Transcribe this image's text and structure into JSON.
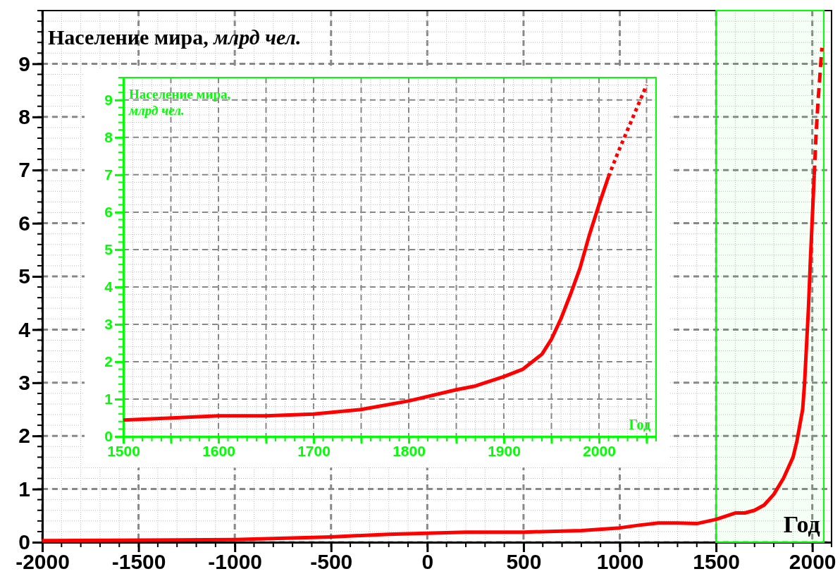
{
  "chart_data": [
    {
      "type": "line",
      "title": "Население мира, млрд чел.",
      "xlabel": "Год",
      "xlim": [
        -2000,
        2100
      ],
      "ylim": [
        0,
        10
      ],
      "xticks": [
        -2000,
        -1500,
        -1000,
        -500,
        0,
        500,
        1000,
        1500,
        2000
      ],
      "yticks": [
        0,
        1,
        2,
        3,
        4,
        5,
        6,
        7,
        8,
        9
      ],
      "grid": true,
      "marker": "none",
      "bands": [
        {
          "axis": "x",
          "from": 1500,
          "to": 2060,
          "color": "#00ff00"
        }
      ],
      "series": [
        {
          "color": "#ff0000",
          "line_style": "solid",
          "x": [
            -2000,
            -1000,
            -500,
            -200,
            0,
            200,
            500,
            600,
            800,
            1000,
            1100,
            1200,
            1300,
            1400,
            1500,
            1600,
            1650,
            1700,
            1750,
            1800,
            1850,
            1900,
            1920,
            1950,
            1960,
            1970,
            1980,
            1990,
            2000,
            2010
          ],
          "values": [
            0.03,
            0.05,
            0.1,
            0.15,
            0.17,
            0.19,
            0.19,
            0.2,
            0.22,
            0.27,
            0.32,
            0.36,
            0.36,
            0.35,
            0.43,
            0.55,
            0.55,
            0.6,
            0.7,
            0.9,
            1.2,
            1.6,
            1.9,
            2.5,
            3.0,
            3.7,
            4.4,
            5.3,
            6.1,
            6.9
          ]
        },
        {
          "color": "#ff0000",
          "line_style": "dashed",
          "x": [
            2010,
            2020,
            2030,
            2040,
            2050
          ],
          "values": [
            6.9,
            7.7,
            8.3,
            8.8,
            9.3
          ]
        }
      ]
    },
    {
      "type": "line",
      "title": "Население мира, млрд чел.",
      "xlabel": "Год",
      "xlim": [
        1500,
        2060
      ],
      "ylim": [
        0,
        9.6
      ],
      "xticks": [
        1500,
        {
          "value": 1550,
          "label": null
        },
        1600,
        {
          "value": 1650,
          "label": null
        },
        1700,
        {
          "value": 1750,
          "label": null
        },
        1800,
        {
          "value": 1850,
          "label": null
        },
        1900,
        {
          "value": 1950,
          "label": null
        },
        2000,
        {
          "value": 2050,
          "label": null
        }
      ],
      "yticks": [
        0,
        1,
        2,
        3,
        4,
        5,
        6,
        7,
        8,
        9
      ],
      "grid": true,
      "marker": "none",
      "series": [
        {
          "color": "#ff0000",
          "line_style": "solid",
          "x": [
            1500,
            1600,
            1650,
            1700,
            1750,
            1800,
            1850,
            1870,
            1900,
            1920,
            1940,
            1950,
            1960,
            1970,
            1980,
            1990,
            2000,
            2010
          ],
          "values": [
            0.44,
            0.55,
            0.55,
            0.6,
            0.72,
            0.95,
            1.25,
            1.35,
            1.6,
            1.8,
            2.2,
            2.6,
            3.15,
            3.8,
            4.5,
            5.4,
            6.2,
            6.95
          ]
        },
        {
          "color": "#ff0000",
          "line_style": "dotted",
          "x": [
            2010,
            2020,
            2030,
            2040,
            2050
          ],
          "values": [
            6.95,
            7.6,
            8.2,
            8.8,
            9.4
          ]
        }
      ]
    }
  ]
}
